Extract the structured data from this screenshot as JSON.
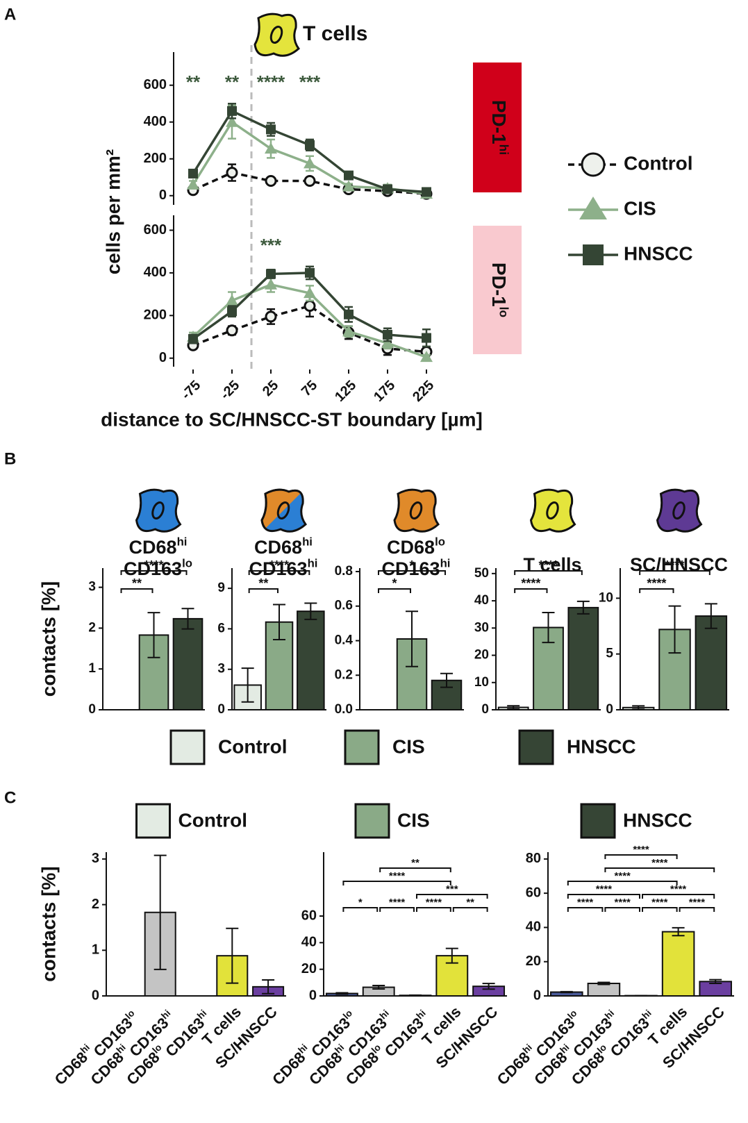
{
  "panel_labels": [
    "A",
    "B",
    "C"
  ],
  "chart_data": [
    {
      "type": "line",
      "title": "T cells",
      "ylabel": "cells per mm²",
      "side_label": [
        "PD-1",
        "hi"
      ],
      "side_color": "#d0001a",
      "x": [
        -75,
        -25,
        25,
        75,
        125,
        175,
        225
      ],
      "xlim": [
        -100,
        250
      ],
      "ylim": [
        -50,
        780
      ],
      "yticks": [
        0,
        200,
        400,
        600
      ],
      "boundary": 0,
      "annotations": [
        {
          "x": -75,
          "text": "**"
        },
        {
          "x": -25,
          "text": "**"
        },
        {
          "x": 25,
          "text": "****"
        },
        {
          "x": 75,
          "text": "***"
        }
      ],
      "series": [
        {
          "name": "Control",
          "color": "#111111",
          "marker": "circle",
          "marker_fill": "#eef1ec",
          "dashed": true,
          "values": [
            30,
            125,
            80,
            80,
            35,
            25,
            10
          ],
          "errors": [
            15,
            45,
            15,
            15,
            10,
            10,
            5
          ]
        },
        {
          "name": "CIS",
          "color": "#8db08a",
          "marker": "triangle",
          "dashed": false,
          "values": [
            60,
            400,
            255,
            175,
            50,
            40,
            10
          ],
          "errors": [
            20,
            90,
            50,
            40,
            15,
            20,
            10
          ]
        },
        {
          "name": "HNSCC",
          "color": "#344534",
          "marker": "square",
          "dashed": false,
          "values": [
            120,
            460,
            360,
            275,
            110,
            35,
            20
          ],
          "errors": [
            20,
            40,
            35,
            30,
            20,
            15,
            10
          ]
        }
      ]
    },
    {
      "type": "line",
      "xlabel": "distance to SC/HNSCC-ST boundary [µm]",
      "side_label": [
        "PD-1",
        "lo"
      ],
      "side_color": "#f9c9cf",
      "x": [
        -75,
        -25,
        25,
        75,
        125,
        175,
        225
      ],
      "xlim": [
        -100,
        250
      ],
      "xticks": [
        -75,
        -25,
        25,
        75,
        125,
        175,
        225
      ],
      "ylim": [
        -40,
        670
      ],
      "yticks": [
        0,
        200,
        400,
        600
      ],
      "boundary": 0,
      "annotations": [
        {
          "x": 25,
          "text": "***"
        }
      ],
      "series": [
        {
          "color": "#111111",
          "marker": "circle",
          "marker_fill": "#eef1ec",
          "dashed": true,
          "values": [
            60,
            130,
            195,
            245,
            120,
            45,
            30
          ],
          "errors": [
            15,
            20,
            35,
            50,
            30,
            30,
            15
          ]
        },
        {
          "color": "#8db08a",
          "marker": "triangle",
          "dashed": false,
          "values": [
            100,
            270,
            345,
            305,
            125,
            70,
            5
          ],
          "errors": [
            20,
            40,
            35,
            35,
            25,
            25,
            10
          ]
        },
        {
          "color": "#344534",
          "marker": "square",
          "dashed": false,
          "values": [
            90,
            220,
            395,
            400,
            205,
            110,
            95
          ],
          "errors": [
            20,
            25,
            20,
            30,
            35,
            30,
            40
          ]
        }
      ]
    },
    {
      "type": "bar",
      "title": [
        [
          "CD68",
          "hi"
        ],
        [
          "CD163",
          "lo"
        ]
      ],
      "ylabel": "contacts [%]",
      "legend": [
        "Control",
        "CIS",
        "HNSCC"
      ],
      "values": [
        0,
        1.83,
        2.23
      ],
      "errors": [
        0,
        0.55,
        0.25
      ],
      "colors": [
        "#e3ebe3",
        "#8aaa87",
        "#364535"
      ],
      "ylim": [
        0,
        3.47
      ],
      "yticks": [
        0,
        1,
        2,
        3
      ],
      "comparisons": [
        [
          {
            "pair": [
              0,
              1
            ],
            "label": "**"
          }
        ],
        [
          {
            "pair": [
              0,
              2
            ],
            "label": "****"
          }
        ]
      ]
    },
    {
      "type": "bar",
      "title": [
        [
          "CD68",
          "hi"
        ],
        [
          "CD163",
          "hi"
        ]
      ],
      "values": [
        1.83,
        6.5,
        7.3
      ],
      "errors": [
        1.25,
        1.3,
        0.6
      ],
      "colors": [
        "#e3ebe3",
        "#8aaa87",
        "#364535"
      ],
      "ylim": [
        0,
        10.5
      ],
      "yticks": [
        0,
        3,
        6,
        9
      ],
      "comparisons": [
        [
          {
            "pair": [
              0,
              1
            ],
            "label": "**"
          }
        ],
        [
          {
            "pair": [
              0,
              2
            ],
            "label": "****"
          }
        ]
      ]
    },
    {
      "type": "bar",
      "title": [
        [
          "CD68",
          "lo"
        ],
        [
          "CD163",
          "hi"
        ]
      ],
      "values": [
        0,
        0.41,
        0.17
      ],
      "errors": [
        0,
        0.16,
        0.04
      ],
      "colors": [
        "#e3ebe3",
        "#8aaa87",
        "#364535"
      ],
      "ylim": [
        0,
        0.82
      ],
      "yticks": [
        {
          "value": 0,
          "label": "0.0"
        },
        0.2,
        0.4,
        0.6,
        0.8
      ],
      "comparisons": [
        [
          {
            "pair": [
              0,
              1
            ],
            "label": "*"
          }
        ],
        [
          {
            "pair": [
              0,
              2
            ],
            "label": "*"
          }
        ]
      ]
    },
    {
      "type": "bar",
      "title": [
        [
          "T cells"
        ]
      ],
      "values": [
        0.88,
        30.2,
        37.5
      ],
      "errors": [
        0.6,
        5.5,
        2.3
      ],
      "colors": [
        "#e3ebe3",
        "#8aaa87",
        "#364535"
      ],
      "ylim": [
        0,
        52
      ],
      "yticks": [
        0,
        10,
        20,
        30,
        40,
        50
      ],
      "comparisons": [
        [
          {
            "pair": [
              0,
              1
            ],
            "label": "****"
          }
        ],
        [
          {
            "pair": [
              0,
              2
            ],
            "label": "****"
          }
        ]
      ]
    },
    {
      "type": "bar",
      "title": [
        [
          "SC/HNSCC"
        ]
      ],
      "values": [
        0.2,
        7.2,
        8.4
      ],
      "errors": [
        0.15,
        2.1,
        1.1
      ],
      "colors": [
        "#e3ebe3",
        "#8aaa87",
        "#364535"
      ],
      "ylim": [
        0,
        12.7
      ],
      "yticks": [
        0,
        5,
        10
      ],
      "comparisons": [
        [
          {
            "pair": [
              0,
              1
            ],
            "label": "****"
          }
        ],
        [
          {
            "pair": [
              0,
              2
            ],
            "label": "****"
          }
        ]
      ]
    },
    {
      "type": "bar",
      "title": "Control",
      "title_color": "#e3ebe3",
      "ylabel": "contacts [%]",
      "categories": [
        [
          "CD68",
          "hi",
          "CD163",
          "lo"
        ],
        [
          "CD68",
          "hi",
          "CD163",
          "hi"
        ],
        [
          "CD68",
          "lo",
          "CD163",
          "hi"
        ],
        [
          "T cells"
        ],
        [
          "SC/HNSCC"
        ]
      ],
      "values": [
        0,
        1.83,
        0,
        0.88,
        0.2
      ],
      "errors": [
        0,
        1.25,
        0,
        0.6,
        0.15
      ],
      "colors": [
        "#4a5a9a",
        "#c4c4c4",
        "#9a9a9a",
        "#e2e23a",
        "#6b3fa0"
      ],
      "ylim": [
        0,
        3.15
      ],
      "yticks": [
        0,
        1,
        2,
        3
      ],
      "comparisons": []
    },
    {
      "type": "bar",
      "title": "CIS",
      "title_color": "#8aaa87",
      "categories": [
        [
          "CD68",
          "hi",
          "CD163",
          "lo"
        ],
        [
          "CD68",
          "hi",
          "CD163",
          "hi"
        ],
        [
          "CD68",
          "lo",
          "CD163",
          "hi"
        ],
        [
          "T cells"
        ],
        [
          "SC/HNSCC"
        ]
      ],
      "values": [
        1.83,
        6.5,
        0.41,
        30.2,
        7.2
      ],
      "errors": [
        0.55,
        1.3,
        0.16,
        5.5,
        2.1
      ],
      "colors": [
        "#4a5a9a",
        "#c4c4c4",
        "#9a9a9a",
        "#e2e23a",
        "#6b3fa0"
      ],
      "ylim": [
        0,
        108
      ],
      "yticks": [
        0,
        20,
        40,
        60
      ],
      "comparisons": [
        [
          {
            "pair": [
              0,
              1
            ],
            "label": "*"
          },
          {
            "pair": [
              1,
              2
            ],
            "label": "****"
          },
          {
            "pair": [
              2,
              3
            ],
            "label": "****"
          },
          {
            "pair": [
              3,
              4
            ],
            "label": "**"
          }
        ],
        [
          {
            "pair": [
              2,
              4
            ],
            "label": "***"
          }
        ],
        [
          {
            "pair": [
              0,
              3
            ],
            "label": "****"
          }
        ],
        [
          {
            "pair": [
              1,
              3
            ],
            "label": "**"
          }
        ]
      ]
    },
    {
      "type": "bar",
      "title": "HNSCC",
      "title_color": "#364535",
      "categories": [
        [
          "CD68",
          "hi",
          "CD163",
          "lo"
        ],
        [
          "CD68",
          "hi",
          "CD163",
          "hi"
        ],
        [
          "CD68",
          "lo",
          "CD163",
          "hi"
        ],
        [
          "T cells"
        ],
        [
          "SC/HNSCC"
        ]
      ],
      "values": [
        2.23,
        7.3,
        0.17,
        37.5,
        8.4
      ],
      "errors": [
        0.25,
        0.6,
        0.04,
        2.3,
        1.1
      ],
      "colors": [
        "#4a5a9a",
        "#c4c4c4",
        "#9a9a9a",
        "#e2e23a",
        "#6b3fa0"
      ],
      "ylim": [
        0,
        84
      ],
      "yticks": [
        0,
        20,
        40,
        60,
        80
      ],
      "comparisons": [
        [
          {
            "pair": [
              0,
              1
            ],
            "label": "****"
          },
          {
            "pair": [
              1,
              2
            ],
            "label": "****"
          },
          {
            "pair": [
              2,
              3
            ],
            "label": "****"
          },
          {
            "pair": [
              3,
              4
            ],
            "label": "****"
          }
        ],
        [
          {
            "pair": [
              0,
              2
            ],
            "label": "****"
          },
          {
            "pair": [
              2,
              4
            ],
            "label": "****"
          }
        ],
        [
          {
            "pair": [
              0,
              3
            ],
            "label": "****"
          }
        ],
        [
          {
            "pair": [
              1,
              4
            ],
            "label": "****"
          }
        ],
        [
          {
            "pair": [
              1,
              3
            ],
            "label": "****"
          }
        ]
      ]
    }
  ]
}
